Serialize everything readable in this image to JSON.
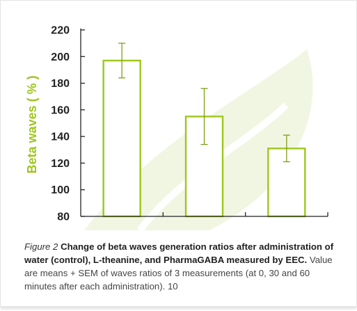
{
  "chart_data": {
    "type": "bar",
    "categories": [
      "water (control)",
      "L-theanine",
      "PharmaGABA"
    ],
    "values": [
      197,
      155,
      131
    ],
    "errors": [
      13,
      21,
      10
    ],
    "ylabel": "Beta waves ( % )",
    "ylim": [
      80,
      220
    ],
    "yticks": [
      80,
      100,
      120,
      140,
      160,
      180,
      200,
      220
    ],
    "grid": false,
    "colors": {
      "bar_fill": "#ffffff",
      "bar_stroke": "#9dc61c",
      "error_bar": "#7ea018",
      "axis": "#222222",
      "ylabel": "#9dc61c",
      "watermark": "#f1f6e2"
    }
  },
  "caption": {
    "figure_label": "Figure 2",
    "title": "Change of beta waves generation ratios after administration of water (control), L-theanine, and PharmaGABA measured by EEC.",
    "note": "Value are means + SEM of waves ratios of 3 measurements (at 0, 30 and 60 minutes after each administration). 10"
  }
}
